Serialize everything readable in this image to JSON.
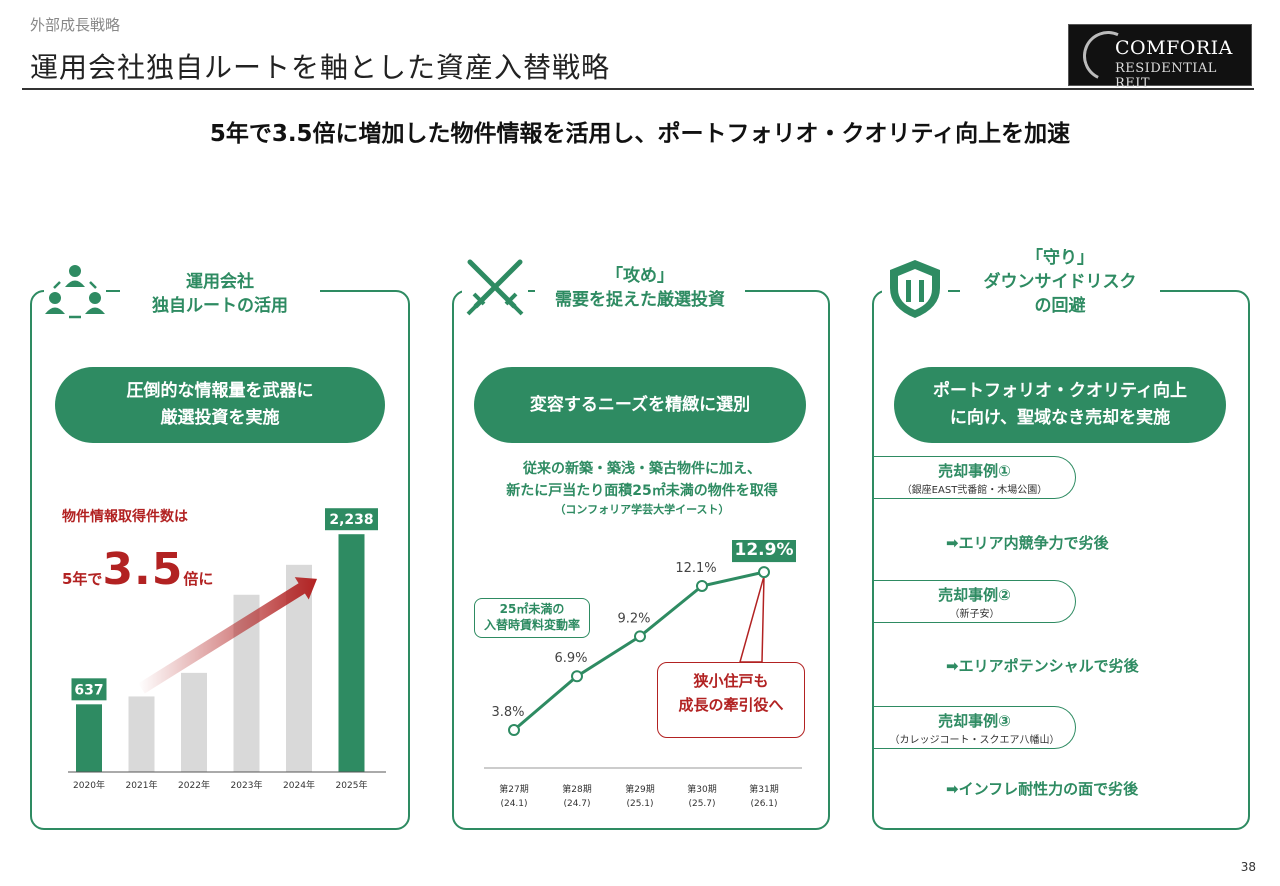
{
  "header": {
    "breadcrumb": "外部成長戦略",
    "title": "運用会社独自ルートを軸とした資産入替戦略",
    "logo_line1": "COMFORIA",
    "logo_line2": "RESIDENTIAL REIT",
    "headline": "5年で3.5倍に増加した物件情報を活用し、ポートフォリオ・クオリティ向上を加速"
  },
  "left": {
    "head_line1": "運用会社",
    "head_line2": "独自ルートの活用",
    "pill_line1": "圧倒的な情報量を武器に",
    "pill_line2": "厳選投資を実施",
    "note_line1": "物件情報取得件数は",
    "note_prefix": "5年で",
    "note_big": "3.5",
    "note_suffix": "倍に"
  },
  "middle": {
    "head_line1": "「攻め」",
    "head_line2": "需要を捉えた厳選投資",
    "pill": "変容するニーズを精緻に選別",
    "desc_line1": "従来の新築・築浅・築古物件に加え、",
    "desc_line2": "新たに戸当たり面積25㎡未満の物件を取得",
    "desc_sub": "（コンフォリア学芸大学イースト）",
    "callout_line1": "25㎡未満の",
    "callout_line2": "入替時賃料変動率",
    "redbox_line1": "狭小住戸も",
    "redbox_line2": "成長の牽引役へ"
  },
  "right": {
    "head_line1": "「守り」",
    "head_line2": "ダウンサイドリスク",
    "head_line3": "の回避",
    "pill_line1": "ポートフォリオ・クオリティ向上",
    "pill_line2": "に向け、聖域なき売却を実施",
    "cases": [
      {
        "title": "売却事例①",
        "sub": "（銀座EAST弐番館・木場公園）",
        "result": "➡エリア内競争力で劣後"
      },
      {
        "title": "売却事例②",
        "sub": "（新子安）",
        "result": "➡エリアポテンシャルで劣後"
      },
      {
        "title": "売却事例③",
        "sub": "（カレッジコート・スクエア八幡山）",
        "result": "➡インフレ耐性力の面で劣後"
      }
    ]
  },
  "page_number": "38",
  "colors": {
    "green": "#2e8b62",
    "red": "#b22222",
    "gray_bar": "#d9d9d9"
  },
  "chart_data": [
    {
      "type": "bar",
      "title": "物件情報取得件数",
      "categories": [
        "2020年",
        "2021年",
        "2022年",
        "2023年",
        "2024年",
        "2025年"
      ],
      "values": [
        637,
        711,
        933,
        1668,
        1950,
        2238
      ],
      "labels": [
        "637",
        "",
        "",
        "",
        "",
        "2,238"
      ],
      "highlight": [
        0,
        5
      ],
      "ylim": [
        0,
        2400
      ]
    },
    {
      "type": "line",
      "title": "25㎡未満の入替時賃料変動率",
      "categories": [
        "第27期",
        "第28期",
        "第29期",
        "第30期",
        "第31期"
      ],
      "subcategories": [
        "(24.1)",
        "(24.7)",
        "(25.1)",
        "(25.7)",
        "(26.1)"
      ],
      "values": [
        3.8,
        6.9,
        9.2,
        12.1,
        12.9
      ],
      "labels": [
        "3.8%",
        "6.9%",
        "9.2%",
        "12.1%",
        "12.9%"
      ],
      "ylim": [
        0,
        14
      ]
    }
  ]
}
